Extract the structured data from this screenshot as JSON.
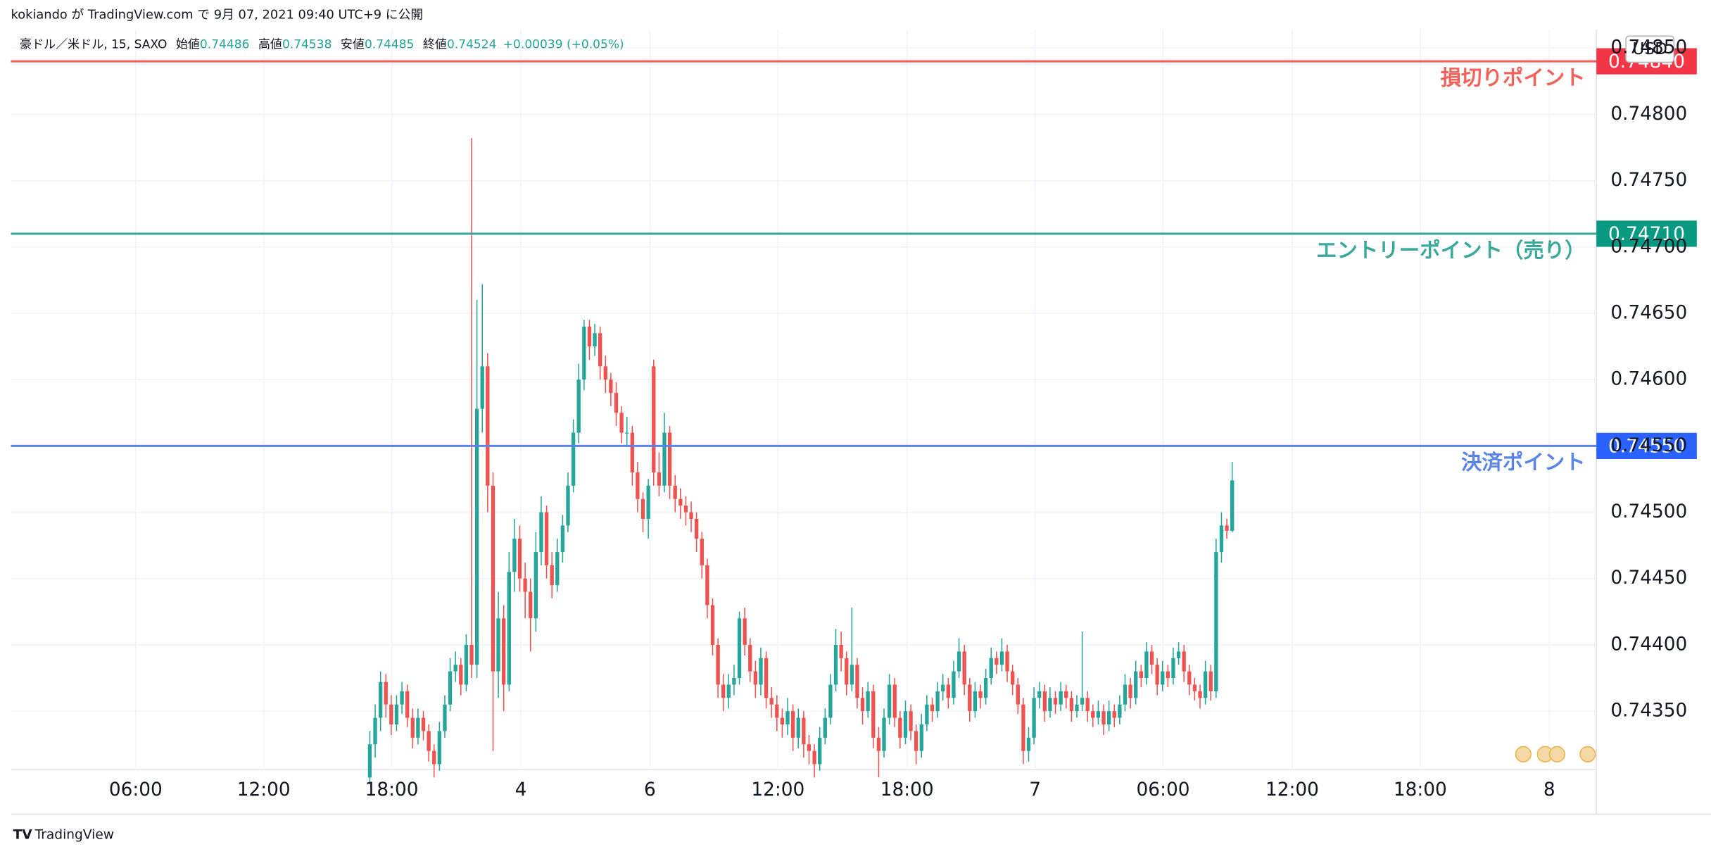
{
  "chart_data": {
    "type": "candlestick",
    "header": "kokiando が TradingView.com で 9月 07, 2021 09:40 UTC+9 に公開",
    "symbol": "豪ドル／米ドル, 15, SAXO",
    "ohlc_labels": [
      "始値",
      "高値",
      "安値",
      "終値"
    ],
    "change": "+0.00039 (+0.05%)",
    "currency": "USD",
    "footer": "TradingView",
    "up_color": "#26a69a",
    "down_color": "#ef5350",
    "xlim": [
      -67,
      229
    ],
    "xticks": [
      {
        "value": -43.7,
        "label": "06:00"
      },
      {
        "value": -19.8,
        "label": "12:00"
      },
      {
        "value": 4.1,
        "label": "18:00"
      },
      {
        "value": 28.2,
        "label": "4"
      },
      {
        "value": 52.3,
        "label": "6"
      },
      {
        "value": 76.2,
        "label": "12:00"
      },
      {
        "value": 100.3,
        "label": "18:00"
      },
      {
        "value": 124.2,
        "label": "7"
      },
      {
        "value": 148.1,
        "label": "06:00"
      },
      {
        "value": 172.2,
        "label": "12:00"
      },
      {
        "value": 196.1,
        "label": "18:00"
      },
      {
        "value": 220.2,
        "label": "8"
      }
    ],
    "ylim": [
      0.74306,
      0.74864
    ],
    "yticks": [
      {
        "value": 0.7435,
        "label": "0.74350"
      },
      {
        "value": 0.744,
        "label": "0.74400"
      },
      {
        "value": 0.7445,
        "label": "0.74450"
      },
      {
        "value": 0.745,
        "label": "0.74500"
      },
      {
        "value": 0.7455,
        "label": "0.74550"
      },
      {
        "value": 0.746,
        "label": "0.74600"
      },
      {
        "value": 0.7465,
        "label": "0.74650"
      },
      {
        "value": 0.747,
        "label": "0.74700"
      },
      {
        "value": 0.7475,
        "label": "0.74750"
      },
      {
        "value": 0.748,
        "label": "0.74800"
      },
      {
        "value": 0.7485,
        "label": "0.74850"
      }
    ],
    "grid": true,
    "lines": [
      {
        "value": 0.7484,
        "label": "0.74840",
        "text": "損切りポイント",
        "color": "#f0625a",
        "box": "#f23645"
      },
      {
        "value": 0.7471,
        "label": "0.74710",
        "text": "エントリーポイント（売り）",
        "color": "#3aa99a",
        "box": "#089981"
      },
      {
        "value": 0.7455,
        "label": "0.74550",
        "text": "決済ポイント",
        "color": "#5b84e8",
        "box": "#2962ff"
      }
    ],
    "ohlc": [
      [
        0.743,
        0.74335,
        0.74295,
        0.74325
      ],
      [
        0.74325,
        0.74355,
        0.74315,
        0.74345
      ],
      [
        0.74345,
        0.7438,
        0.74335,
        0.74372
      ],
      [
        0.74372,
        0.74378,
        0.74345,
        0.74355
      ],
      [
        0.74355,
        0.74362,
        0.74332,
        0.7434
      ],
      [
        0.7434,
        0.74362,
        0.74335,
        0.74355
      ],
      [
        0.74355,
        0.74372,
        0.74348,
        0.74365
      ],
      [
        0.74365,
        0.7437,
        0.74338,
        0.74345
      ],
      [
        0.74345,
        0.74352,
        0.74322,
        0.7433
      ],
      [
        0.7433,
        0.74352,
        0.74325,
        0.74345
      ],
      [
        0.74345,
        0.7435,
        0.74328,
        0.74335
      ],
      [
        0.74335,
        0.7434,
        0.74312,
        0.7432
      ],
      [
        0.7432,
        0.74325,
        0.743,
        0.7431
      ],
      [
        0.7431,
        0.74342,
        0.74305,
        0.74335
      ],
      [
        0.74335,
        0.74362,
        0.7433,
        0.74355
      ],
      [
        0.74355,
        0.7439,
        0.7435,
        0.7438
      ],
      [
        0.7438,
        0.74395,
        0.74372,
        0.74385
      ],
      [
        0.74385,
        0.7439,
        0.74362,
        0.7437
      ],
      [
        0.7437,
        0.74408,
        0.74365,
        0.744
      ],
      [
        0.744,
        0.74782,
        0.74375,
        0.74385
      ],
      [
        0.74385,
        0.7466,
        0.74375,
        0.74578
      ],
      [
        0.74578,
        0.74672,
        0.7456,
        0.7461
      ],
      [
        0.7461,
        0.7462,
        0.745,
        0.7452
      ],
      [
        0.7452,
        0.7453,
        0.7432,
        0.7438
      ],
      [
        0.7438,
        0.7444,
        0.7436,
        0.7442
      ],
      [
        0.7442,
        0.7443,
        0.7435,
        0.7437
      ],
      [
        0.7437,
        0.7447,
        0.74365,
        0.74455
      ],
      [
        0.74455,
        0.74495,
        0.7444,
        0.7448
      ],
      [
        0.7448,
        0.7449,
        0.7444,
        0.7445
      ],
      [
        0.7445,
        0.74462,
        0.7442,
        0.7444
      ],
      [
        0.7444,
        0.7445,
        0.74395,
        0.7442
      ],
      [
        0.7442,
        0.74485,
        0.7441,
        0.7447
      ],
      [
        0.7447,
        0.74512,
        0.7446,
        0.745
      ],
      [
        0.745,
        0.74505,
        0.7445,
        0.7446
      ],
      [
        0.7446,
        0.7447,
        0.74435,
        0.74445
      ],
      [
        0.74445,
        0.7448,
        0.7444,
        0.7447
      ],
      [
        0.7447,
        0.74498,
        0.74462,
        0.7449
      ],
      [
        0.7449,
        0.7453,
        0.74485,
        0.7452
      ],
      [
        0.7452,
        0.7457,
        0.74515,
        0.7456
      ],
      [
        0.7456,
        0.74612,
        0.74552,
        0.746
      ],
      [
        0.746,
        0.74645,
        0.74592,
        0.7464
      ],
      [
        0.7464,
        0.74645,
        0.74615,
        0.74625
      ],
      [
        0.74625,
        0.74642,
        0.74618,
        0.74635
      ],
      [
        0.74635,
        0.7464,
        0.746,
        0.7461
      ],
      [
        0.7461,
        0.74618,
        0.7459,
        0.746
      ],
      [
        0.746,
        0.74605,
        0.7458,
        0.7459
      ],
      [
        0.7459,
        0.74598,
        0.74565,
        0.74575
      ],
      [
        0.74575,
        0.7458,
        0.74552,
        0.7456
      ],
      [
        0.7456,
        0.74572,
        0.7455,
        0.7456
      ],
      [
        0.7456,
        0.74565,
        0.7452,
        0.7453
      ],
      [
        0.7453,
        0.74538,
        0.745,
        0.7451
      ],
      [
        0.7451,
        0.74515,
        0.74485,
        0.74495
      ],
      [
        0.74495,
        0.74525,
        0.7448,
        0.7452
      ],
      [
        0.7461,
        0.74615,
        0.7452,
        0.7453
      ],
      [
        0.7453,
        0.74545,
        0.74512,
        0.7452
      ],
      [
        0.7452,
        0.74575,
        0.74515,
        0.7456
      ],
      [
        0.7456,
        0.74565,
        0.7451,
        0.7452
      ],
      [
        0.7452,
        0.74528,
        0.745,
        0.7451
      ],
      [
        0.7451,
        0.74518,
        0.74495,
        0.74505
      ],
      [
        0.74505,
        0.74512,
        0.7449,
        0.745
      ],
      [
        0.745,
        0.74508,
        0.74485,
        0.74495
      ],
      [
        0.74495,
        0.745,
        0.7447,
        0.7448
      ],
      [
        0.7448,
        0.74485,
        0.7445,
        0.7446
      ],
      [
        0.7446,
        0.74465,
        0.7442,
        0.7443
      ],
      [
        0.7443,
        0.74435,
        0.74392,
        0.744
      ],
      [
        0.744,
        0.74405,
        0.7436,
        0.7437
      ],
      [
        0.7437,
        0.74378,
        0.7435,
        0.7436
      ],
      [
        0.7436,
        0.74378,
        0.74352,
        0.7437
      ],
      [
        0.7437,
        0.74385,
        0.74362,
        0.74375
      ],
      [
        0.74375,
        0.74425,
        0.7437,
        0.7442
      ],
      [
        0.7442,
        0.74428,
        0.74392,
        0.744
      ],
      [
        0.744,
        0.74405,
        0.74372,
        0.7438
      ],
      [
        0.7438,
        0.74388,
        0.7436,
        0.7437
      ],
      [
        0.7437,
        0.74398,
        0.74362,
        0.7439
      ],
      [
        0.7439,
        0.74395,
        0.74352,
        0.7436
      ],
      [
        0.7436,
        0.74368,
        0.74345,
        0.74355
      ],
      [
        0.74355,
        0.74362,
        0.74335,
        0.74345
      ],
      [
        0.74345,
        0.74352,
        0.7433,
        0.7434
      ],
      [
        0.7434,
        0.7436,
        0.74332,
        0.7435
      ],
      [
        0.7435,
        0.74355,
        0.7432,
        0.7433
      ],
      [
        0.7433,
        0.74352,
        0.74322,
        0.74345
      ],
      [
        0.74345,
        0.7435,
        0.74315,
        0.74325
      ],
      [
        0.74325,
        0.74332,
        0.7431,
        0.7432
      ],
      [
        0.7432,
        0.74325,
        0.743,
        0.7431
      ],
      [
        0.7431,
        0.74338,
        0.74305,
        0.7433
      ],
      [
        0.7433,
        0.74352,
        0.74325,
        0.74345
      ],
      [
        0.74345,
        0.74378,
        0.7434,
        0.7437
      ],
      [
        0.7437,
        0.74412,
        0.74365,
        0.744
      ],
      [
        0.744,
        0.7441,
        0.7438,
        0.7439
      ],
      [
        0.7439,
        0.74395,
        0.74362,
        0.7437
      ],
      [
        0.7437,
        0.74428,
        0.74365,
        0.74385
      ],
      [
        0.74385,
        0.7439,
        0.74352,
        0.7436
      ],
      [
        0.7436,
        0.74368,
        0.7434,
        0.7435
      ],
      [
        0.7435,
        0.74372,
        0.74345,
        0.74365
      ],
      [
        0.74365,
        0.7437,
        0.74322,
        0.7433
      ],
      [
        0.7433,
        0.74338,
        0.743,
        0.7432
      ],
      [
        0.7432,
        0.74352,
        0.74315,
        0.74345
      ],
      [
        0.74345,
        0.74378,
        0.7434,
        0.7437
      ],
      [
        0.7437,
        0.74375,
        0.74338,
        0.74345
      ],
      [
        0.74345,
        0.7435,
        0.74322,
        0.7433
      ],
      [
        0.7433,
        0.74358,
        0.74325,
        0.7435
      ],
      [
        0.7435,
        0.74355,
        0.74328,
        0.74335
      ],
      [
        0.74335,
        0.7434,
        0.7431,
        0.7432
      ],
      [
        0.7432,
        0.74348,
        0.74315,
        0.7434
      ],
      [
        0.7434,
        0.74362,
        0.74335,
        0.74355
      ],
      [
        0.74355,
        0.7436,
        0.74342,
        0.7435
      ],
      [
        0.7435,
        0.74372,
        0.74345,
        0.74365
      ],
      [
        0.74365,
        0.74378,
        0.74358,
        0.7437
      ],
      [
        0.7437,
        0.74375,
        0.74352,
        0.7436
      ],
      [
        0.7436,
        0.74388,
        0.74355,
        0.7438
      ],
      [
        0.7438,
        0.74405,
        0.74375,
        0.74395
      ],
      [
        0.74395,
        0.744,
        0.74362,
        0.7437
      ],
      [
        0.7437,
        0.74375,
        0.74342,
        0.7435
      ],
      [
        0.7435,
        0.74372,
        0.74345,
        0.74365
      ],
      [
        0.74365,
        0.7437,
        0.74352,
        0.7436
      ],
      [
        0.7436,
        0.74382,
        0.74355,
        0.74375
      ],
      [
        0.74375,
        0.74398,
        0.7437,
        0.7439
      ],
      [
        0.7439,
        0.74395,
        0.74378,
        0.74385
      ],
      [
        0.74385,
        0.74405,
        0.7438,
        0.74395
      ],
      [
        0.74395,
        0.744,
        0.74372,
        0.7438
      ],
      [
        0.7438,
        0.74385,
        0.74362,
        0.7437
      ],
      [
        0.7437,
        0.74375,
        0.74348,
        0.74355
      ],
      [
        0.74355,
        0.7436,
        0.7431,
        0.7432
      ],
      [
        0.7432,
        0.74338,
        0.74312,
        0.7433
      ],
      [
        0.7433,
        0.74368,
        0.74325,
        0.7436
      ],
      [
        0.7436,
        0.74372,
        0.74352,
        0.74365
      ],
      [
        0.74365,
        0.7437,
        0.74342,
        0.7435
      ],
      [
        0.7435,
        0.74368,
        0.74345,
        0.7436
      ],
      [
        0.7436,
        0.74365,
        0.74348,
        0.74355
      ],
      [
        0.74355,
        0.74372,
        0.7435,
        0.74365
      ],
      [
        0.74365,
        0.7437,
        0.74352,
        0.7436
      ],
      [
        0.7436,
        0.74365,
        0.74342,
        0.7435
      ],
      [
        0.7435,
        0.74362,
        0.74345,
        0.74355
      ],
      [
        0.74355,
        0.7441,
        0.7435,
        0.7436
      ],
      [
        0.7436,
        0.74365,
        0.74342,
        0.7435
      ],
      [
        0.7435,
        0.74355,
        0.74338,
        0.74345
      ],
      [
        0.74345,
        0.74358,
        0.7434,
        0.7435
      ],
      [
        0.7435,
        0.74355,
        0.74332,
        0.7434
      ],
      [
        0.7434,
        0.74358,
        0.74335,
        0.7435
      ],
      [
        0.7435,
        0.74355,
        0.74338,
        0.74345
      ],
      [
        0.74345,
        0.74362,
        0.7434,
        0.74355
      ],
      [
        0.74355,
        0.74378,
        0.7435,
        0.7437
      ],
      [
        0.7437,
        0.74375,
        0.74352,
        0.7436
      ],
      [
        0.7436,
        0.74388,
        0.74355,
        0.7438
      ],
      [
        0.7438,
        0.74385,
        0.74368,
        0.74375
      ],
      [
        0.74375,
        0.74402,
        0.7437,
        0.74395
      ],
      [
        0.74395,
        0.744,
        0.74378,
        0.74385
      ],
      [
        0.74385,
        0.7439,
        0.74362,
        0.7437
      ],
      [
        0.7437,
        0.74388,
        0.74365,
        0.7438
      ],
      [
        0.7438,
        0.74385,
        0.74368,
        0.74375
      ],
      [
        0.74375,
        0.74398,
        0.7437,
        0.7439
      ],
      [
        0.7439,
        0.74402,
        0.74385,
        0.74395
      ],
      [
        0.74395,
        0.744,
        0.74372,
        0.7438
      ],
      [
        0.7438,
        0.74385,
        0.74362,
        0.7437
      ],
      [
        0.7437,
        0.74375,
        0.74358,
        0.74365
      ],
      [
        0.74365,
        0.7437,
        0.74352,
        0.7436
      ],
      [
        0.7436,
        0.74388,
        0.74355,
        0.7438
      ],
      [
        0.7438,
        0.74385,
        0.74358,
        0.74365
      ],
      [
        0.74365,
        0.7448,
        0.7436,
        0.7447
      ],
      [
        0.7447,
        0.745,
        0.74462,
        0.7449
      ],
      [
        0.7449,
        0.74495,
        0.7448,
        0.74486
      ],
      [
        0.74486,
        0.74538,
        0.74485,
        0.74524
      ]
    ]
  }
}
